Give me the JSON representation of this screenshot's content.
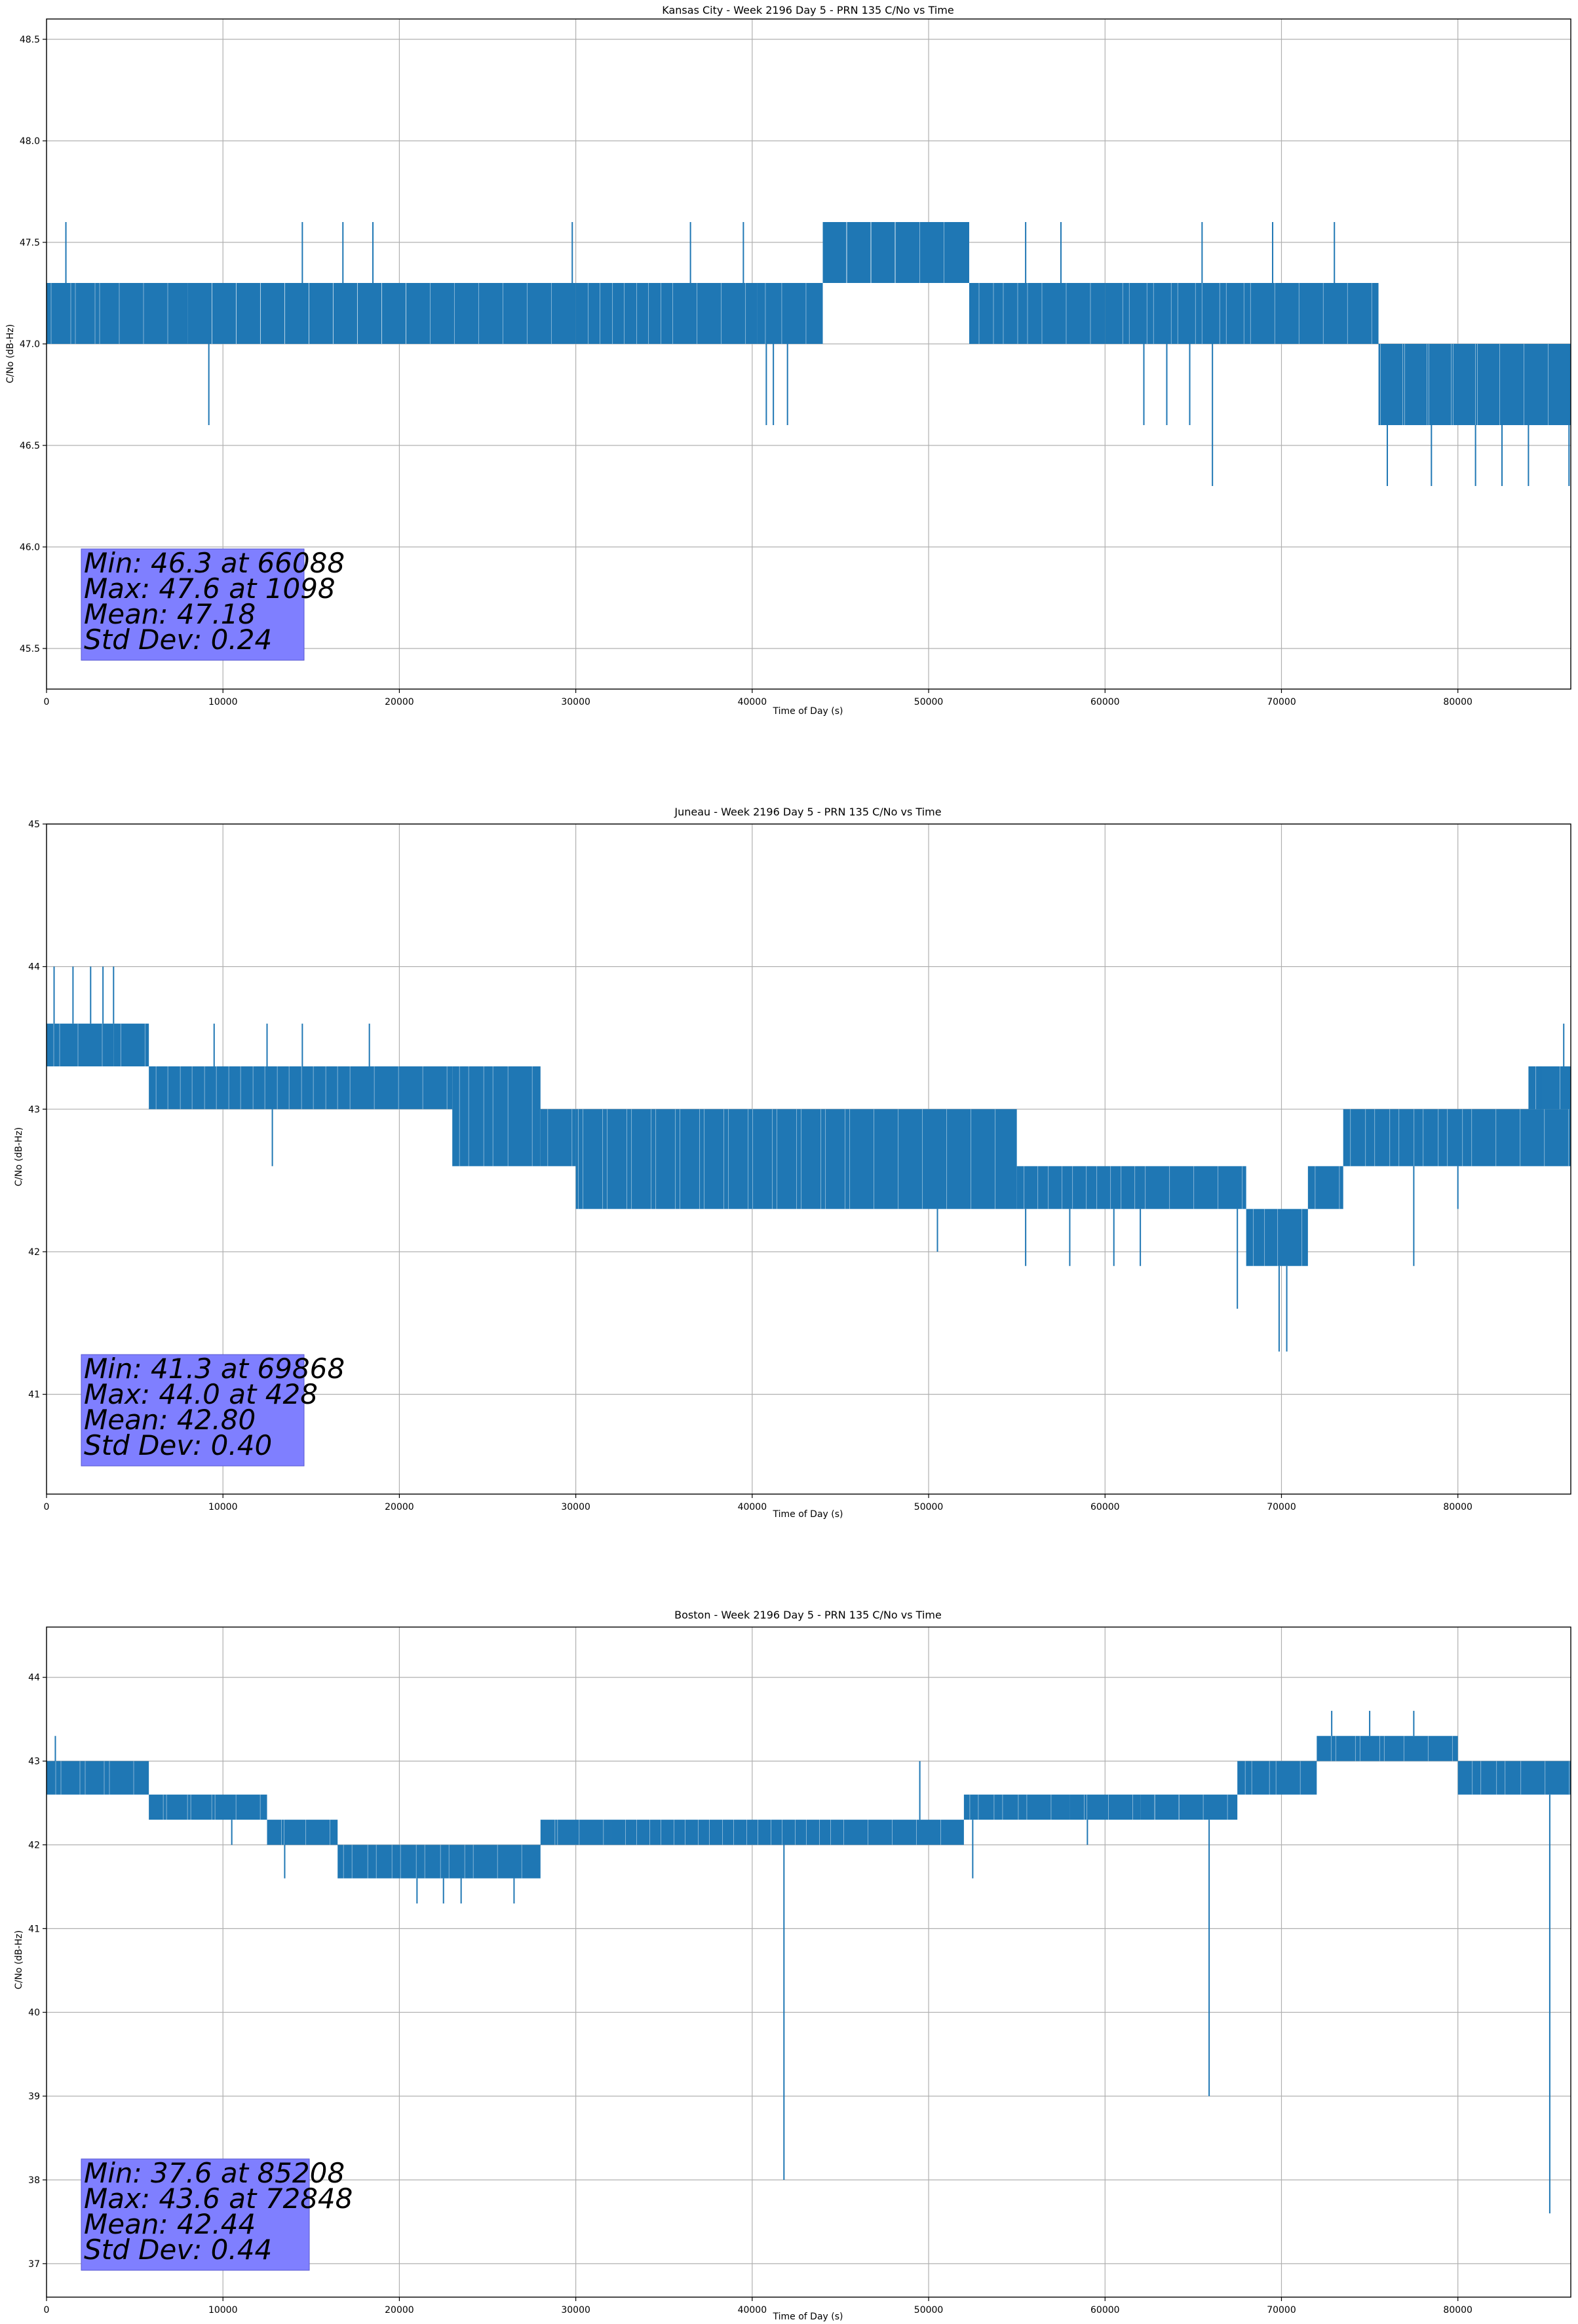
{
  "chart_data": [
    {
      "type": "line",
      "title": "Kansas City - Week 2196 Day 5 - PRN 135 C/No vs Time",
      "xlabel": "Time of Day (s)",
      "ylabel": "C/No (dB-Hz)",
      "xlim": [
        0,
        86400
      ],
      "ylim": [
        45.3,
        48.6
      ],
      "xticks": [
        0,
        10000,
        20000,
        30000,
        40000,
        50000,
        60000,
        70000,
        80000
      ],
      "yticks": [
        45.5,
        46.0,
        46.5,
        47.0,
        47.5,
        48.0,
        48.5
      ],
      "ytick_labels": [
        "45.5",
        "46.0",
        "46.5",
        "47.0",
        "47.5",
        "48.0",
        "48.5"
      ],
      "grid": true,
      "color": "#1f77b4",
      "stats": [
        "Min: 46.3 at 66088",
        "Max: 47.6 at 1098",
        "Mean: 47.18",
        "Std Dev: 0.24"
      ],
      "series": [
        {
          "segments": [
            {
              "x": [
                0,
                8000
              ],
              "low": 47.0,
              "high": 47.3
            },
            {
              "x": [
                8000,
                30000
              ],
              "low": 47.0,
              "high": 47.3
            },
            {
              "x": [
                30000,
                40300
              ],
              "low": 47.0,
              "high": 47.3
            },
            {
              "x": [
                40300,
                44000
              ],
              "low": 47.0,
              "high": 47.3
            },
            {
              "x": [
                44000,
                52300
              ],
              "low": 47.3,
              "high": 47.6
            },
            {
              "x": [
                52300,
                60000
              ],
              "low": 47.0,
              "high": 47.3
            },
            {
              "x": [
                60000,
                75500
              ],
              "low": 47.0,
              "high": 47.3
            },
            {
              "x": [
                75500,
                86400
              ],
              "low": 46.6,
              "high": 47.0
            }
          ],
          "spikes": [
            {
              "x": 1098,
              "y": 47.6
            },
            {
              "x": 9200,
              "y": 46.6
            },
            {
              "x": 14500,
              "y": 47.6
            },
            {
              "x": 16800,
              "y": 47.6
            },
            {
              "x": 18500,
              "y": 47.6
            },
            {
              "x": 29800,
              "y": 47.6
            },
            {
              "x": 36500,
              "y": 47.6
            },
            {
              "x": 39500,
              "y": 47.6
            },
            {
              "x": 40800,
              "y": 46.6
            },
            {
              "x": 41200,
              "y": 46.6
            },
            {
              "x": 42000,
              "y": 46.6
            },
            {
              "x": 55500,
              "y": 47.6
            },
            {
              "x": 57500,
              "y": 47.6
            },
            {
              "x": 62200,
              "y": 46.6
            },
            {
              "x": 63500,
              "y": 46.6
            },
            {
              "x": 64800,
              "y": 46.6
            },
            {
              "x": 65500,
              "y": 47.6
            },
            {
              "x": 66088,
              "y": 46.3
            },
            {
              "x": 69500,
              "y": 47.6
            },
            {
              "x": 73000,
              "y": 47.6
            },
            {
              "x": 76000,
              "y": 46.3
            },
            {
              "x": 78500,
              "y": 46.3
            },
            {
              "x": 81000,
              "y": 46.3
            },
            {
              "x": 82500,
              "y": 46.3
            },
            {
              "x": 84000,
              "y": 46.3
            },
            {
              "x": 86300,
              "y": 46.3
            }
          ]
        }
      ]
    },
    {
      "type": "line",
      "title": "Juneau - Week 2196 Day 5 - PRN 135 C/No vs Time",
      "xlabel": "Time of Day (s)",
      "ylabel": "C/No (dB-Hz)",
      "xlim": [
        0,
        86400
      ],
      "ylim": [
        40.3,
        45.0
      ],
      "xticks": [
        0,
        10000,
        20000,
        30000,
        40000,
        50000,
        60000,
        70000,
        80000
      ],
      "yticks": [
        41,
        42,
        43,
        44,
        45
      ],
      "ytick_labels": [
        "41",
        "42",
        "43",
        "44",
        "45"
      ],
      "grid": true,
      "color": "#1f77b4",
      "stats": [
        "Min: 41.3 at 69868",
        "Max: 44.0 at 428",
        "Mean: 42.80",
        "Std Dev: 0.40"
      ],
      "series": [
        {
          "segments": [
            {
              "x": [
                0,
                3800
              ],
              "low": 43.3,
              "high": 43.6
            },
            {
              "x": [
                3800,
                5800
              ],
              "low": 43.3,
              "high": 43.6
            },
            {
              "x": [
                5800,
                23000
              ],
              "low": 43.0,
              "high": 43.3
            },
            {
              "x": [
                23000,
                28000
              ],
              "low": 42.6,
              "high": 43.3
            },
            {
              "x": [
                28000,
                30000
              ],
              "low": 42.6,
              "high": 43.0
            },
            {
              "x": [
                30000,
                55000
              ],
              "low": 42.3,
              "high": 43.0
            },
            {
              "x": [
                55000,
                68000
              ],
              "low": 42.3,
              "high": 42.6
            },
            {
              "x": [
                68000,
                71500
              ],
              "low": 41.9,
              "high": 42.3
            },
            {
              "x": [
                71500,
                73500
              ],
              "low": 42.3,
              "high": 42.6
            },
            {
              "x": [
                73500,
                86400
              ],
              "low": 42.6,
              "high": 43.0
            },
            {
              "x": [
                84000,
                86400
              ],
              "low": 43.0,
              "high": 43.3
            }
          ],
          "spikes": [
            {
              "x": 428,
              "y": 44.0
            },
            {
              "x": 1500,
              "y": 44.0
            },
            {
              "x": 2500,
              "y": 44.0
            },
            {
              "x": 3200,
              "y": 44.0
            },
            {
              "x": 3800,
              "y": 44.0
            },
            {
              "x": 9500,
              "y": 43.6
            },
            {
              "x": 12500,
              "y": 43.6
            },
            {
              "x": 12800,
              "y": 42.6
            },
            {
              "x": 14500,
              "y": 43.6
            },
            {
              "x": 18300,
              "y": 43.6
            },
            {
              "x": 50500,
              "y": 42.0
            },
            {
              "x": 55500,
              "y": 41.9
            },
            {
              "x": 58000,
              "y": 41.9
            },
            {
              "x": 60500,
              "y": 41.9
            },
            {
              "x": 62000,
              "y": 41.9
            },
            {
              "x": 67500,
              "y": 41.6
            },
            {
              "x": 69868,
              "y": 41.3
            },
            {
              "x": 70300,
              "y": 41.3
            },
            {
              "x": 77500,
              "y": 41.9
            },
            {
              "x": 80000,
              "y": 42.3
            },
            {
              "x": 84700,
              "y": 43.3
            },
            {
              "x": 86000,
              "y": 43.6
            }
          ]
        }
      ]
    },
    {
      "type": "line",
      "title": "Boston - Week 2196 Day 5 - PRN 135 C/No vs Time",
      "xlabel": "Time of Day (s)",
      "ylabel": "C/No (dB-Hz)",
      "xlim": [
        0,
        86400
      ],
      "ylim": [
        36.6,
        44.6
      ],
      "xticks": [
        0,
        10000,
        20000,
        30000,
        40000,
        50000,
        60000,
        70000,
        80000
      ],
      "yticks": [
        37,
        38,
        39,
        40,
        41,
        42,
        43,
        44
      ],
      "ytick_labels": [
        "37",
        "38",
        "39",
        "40",
        "41",
        "42",
        "43",
        "44"
      ],
      "grid": true,
      "color": "#1f77b4",
      "stats": [
        "Min: 37.6 at 85208",
        "Max: 43.6 at 72848",
        "Mean: 42.44",
        "Std Dev: 0.44"
      ],
      "series": [
        {
          "segments": [
            {
              "x": [
                0,
                5800
              ],
              "low": 42.6,
              "high": 43.0
            },
            {
              "x": [
                5800,
                12500
              ],
              "low": 42.3,
              "high": 42.6
            },
            {
              "x": [
                12500,
                16500
              ],
              "low": 42.0,
              "high": 42.3
            },
            {
              "x": [
                16500,
                28000
              ],
              "low": 41.6,
              "high": 42.0
            },
            {
              "x": [
                28000,
                32000
              ],
              "low": 42.0,
              "high": 42.3
            },
            {
              "x": [
                32000,
                52000
              ],
              "low": 42.0,
              "high": 42.3
            },
            {
              "x": [
                52000,
                58000
              ],
              "low": 42.3,
              "high": 42.6
            },
            {
              "x": [
                58000,
                62000
              ],
              "low": 42.3,
              "high": 42.6
            },
            {
              "x": [
                62000,
                67500
              ],
              "low": 42.3,
              "high": 42.6
            },
            {
              "x": 0,
              "skip": true
            },
            {
              "x": [
                67500,
                72000
              ],
              "low": 42.6,
              "high": 43.0
            },
            {
              "x": [
                72000,
                80000
              ],
              "low": 43.0,
              "high": 43.3
            },
            {
              "x": [
                80000,
                86400
              ],
              "low": 42.6,
              "high": 43.0
            }
          ],
          "spikes": [
            {
              "x": 500,
              "y": 43.3
            },
            {
              "x": 10500,
              "y": 42.0
            },
            {
              "x": 13500,
              "y": 41.6
            },
            {
              "x": 21000,
              "y": 41.3
            },
            {
              "x": 22500,
              "y": 41.3
            },
            {
              "x": 23500,
              "y": 41.3
            },
            {
              "x": 26500,
              "y": 41.3
            },
            {
              "x": 41800,
              "y": 38.0
            },
            {
              "x": 49500,
              "y": 43.0
            },
            {
              "x": 52500,
              "y": 41.6
            },
            {
              "x": 59000,
              "y": 42.0
            },
            {
              "x": 65900,
              "y": 39.0
            },
            {
              "x": 72848,
              "y": 43.6
            },
            {
              "x": 75000,
              "y": 43.6
            },
            {
              "x": 77500,
              "y": 43.6
            },
            {
              "x": 85208,
              "y": 37.6
            }
          ]
        }
      ]
    }
  ]
}
